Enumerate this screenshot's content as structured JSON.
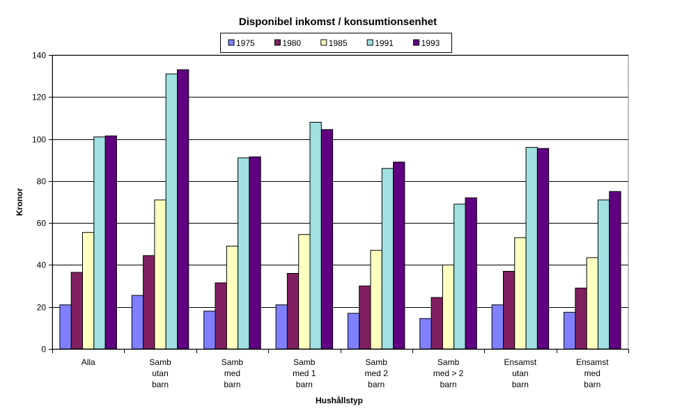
{
  "chart_data": {
    "type": "bar",
    "title": "Disponibel inkomst / konsumtionsenhet",
    "xlabel": "Hushållstyp",
    "ylabel": "Kronor",
    "ylim": [
      0,
      140
    ],
    "yticks": [
      0,
      20,
      40,
      60,
      80,
      100,
      120,
      140
    ],
    "grid": true,
    "legend_position": "top",
    "categories": [
      [
        "Alla"
      ],
      [
        "Samb",
        "utan",
        "barn"
      ],
      [
        "Samb",
        "med",
        "barn"
      ],
      [
        "Samb",
        "med 1",
        "barn"
      ],
      [
        "Samb",
        "med  2",
        "barn"
      ],
      [
        "Samb",
        "med > 2",
        "barn"
      ],
      [
        "Ensamst",
        "utan",
        "barn"
      ],
      [
        "Ensamst",
        "med",
        "barn"
      ]
    ],
    "series": [
      {
        "name": "1975",
        "color": "#8080ff",
        "values": [
          21,
          25.5,
          18,
          21,
          17,
          14.5,
          21,
          17.5
        ]
      },
      {
        "name": "1980",
        "color": "#802060",
        "values": [
          36.5,
          44.5,
          31.5,
          36,
          30,
          24.5,
          37,
          29
        ]
      },
      {
        "name": "1985",
        "color": "#ffffc0",
        "values": [
          55.5,
          71,
          49,
          54.5,
          47,
          40,
          53,
          43.5
        ]
      },
      {
        "name": "1991",
        "color": "#a0e0e0",
        "values": [
          101,
          131,
          91,
          108,
          86,
          69,
          96,
          71
        ]
      },
      {
        "name": "1993",
        "color": "#600080",
        "values": [
          101.5,
          133,
          91.5,
          104.5,
          89,
          72,
          95.5,
          75
        ]
      }
    ]
  }
}
